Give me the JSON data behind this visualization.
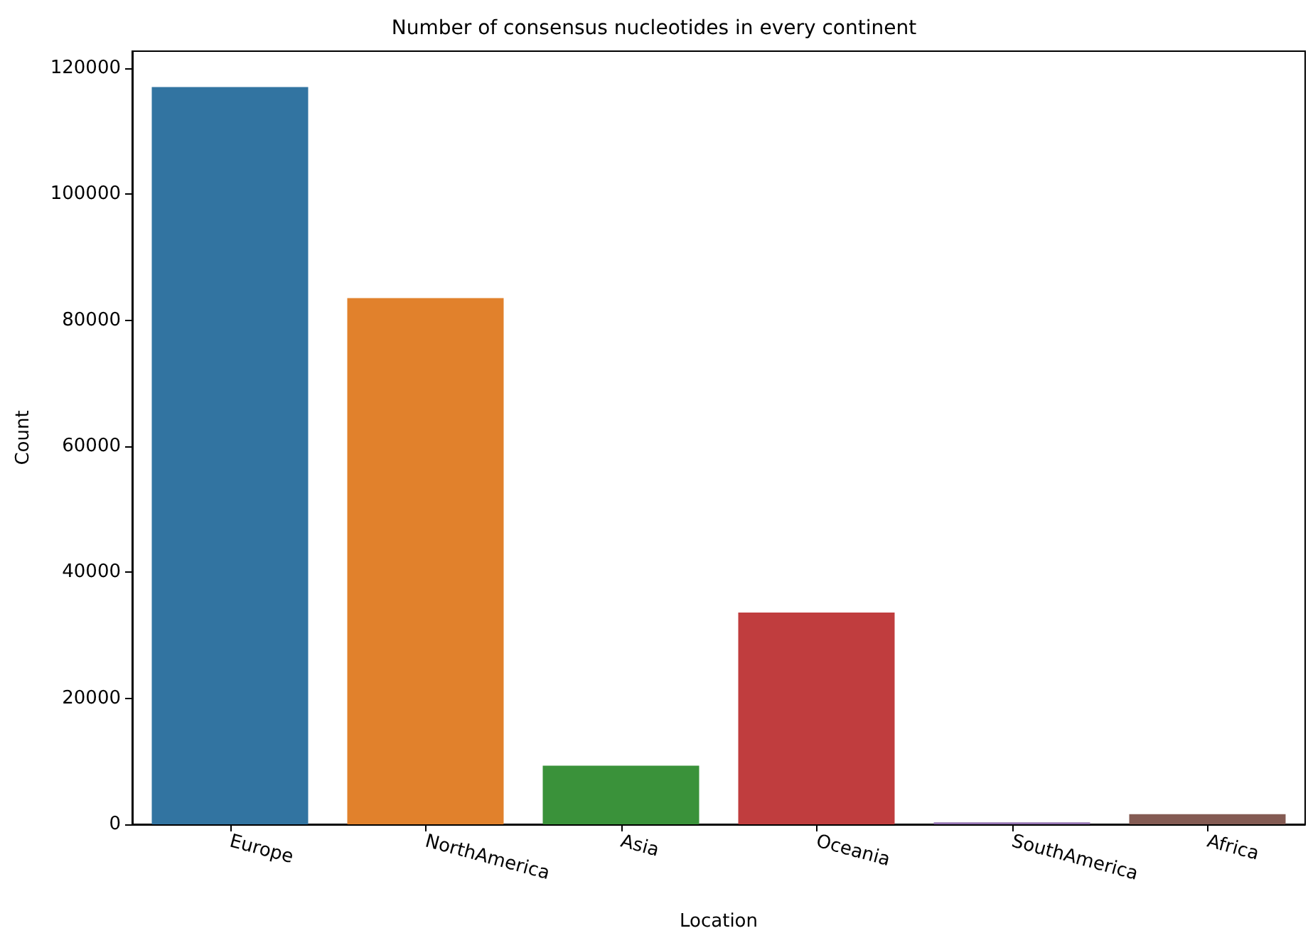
{
  "chart_data": {
    "type": "bar",
    "title": "Number of consensus nucleotides in every continent",
    "xlabel": "Location",
    "ylabel": "Count",
    "categories": [
      "Europe",
      "NorthAmerica",
      "Asia",
      "Oceania",
      "SouthAmerica",
      "Africa"
    ],
    "values": [
      117000,
      83500,
      9300,
      33600,
      300,
      1600
    ],
    "colors": [
      "#3274a1",
      "#e1812c",
      "#3a923a",
      "#c03d3e",
      "#9372b2",
      "#845b53"
    ],
    "ylim": [
      0,
      122700
    ],
    "yticks": [
      0,
      20000,
      40000,
      60000,
      80000,
      100000,
      120000
    ],
    "grid": false
  }
}
